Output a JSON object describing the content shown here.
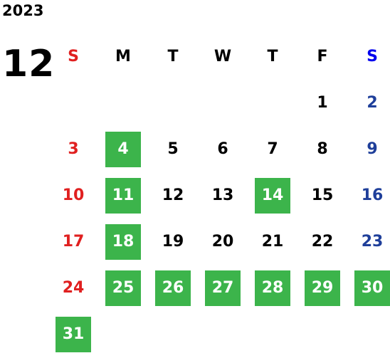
{
  "year": "2023",
  "month": "12",
  "weekdays": [
    "S",
    "M",
    "T",
    "W",
    "T",
    "F",
    "S"
  ],
  "weeks": [
    [
      null,
      null,
      null,
      null,
      null,
      {
        "day": 1,
        "highlight": false
      },
      {
        "day": 2,
        "highlight": false
      }
    ],
    [
      {
        "day": 3,
        "highlight": false
      },
      {
        "day": 4,
        "highlight": true
      },
      {
        "day": 5,
        "highlight": false
      },
      {
        "day": 6,
        "highlight": false
      },
      {
        "day": 7,
        "highlight": false
      },
      {
        "day": 8,
        "highlight": false
      },
      {
        "day": 9,
        "highlight": false
      }
    ],
    [
      {
        "day": 10,
        "highlight": false
      },
      {
        "day": 11,
        "highlight": true
      },
      {
        "day": 12,
        "highlight": false
      },
      {
        "day": 13,
        "highlight": false
      },
      {
        "day": 14,
        "highlight": true
      },
      {
        "day": 15,
        "highlight": false
      },
      {
        "day": 16,
        "highlight": false
      }
    ],
    [
      {
        "day": 17,
        "highlight": false
      },
      {
        "day": 18,
        "highlight": true
      },
      {
        "day": 19,
        "highlight": false
      },
      {
        "day": 20,
        "highlight": false
      },
      {
        "day": 21,
        "highlight": false
      },
      {
        "day": 22,
        "highlight": false
      },
      {
        "day": 23,
        "highlight": false
      }
    ],
    [
      {
        "day": 24,
        "highlight": false
      },
      {
        "day": 25,
        "highlight": true
      },
      {
        "day": 26,
        "highlight": true
      },
      {
        "day": 27,
        "highlight": true
      },
      {
        "day": 28,
        "highlight": true
      },
      {
        "day": 29,
        "highlight": true
      },
      {
        "day": 30,
        "highlight": true
      }
    ],
    [
      {
        "day": 31,
        "highlight": true
      }
    ]
  ]
}
